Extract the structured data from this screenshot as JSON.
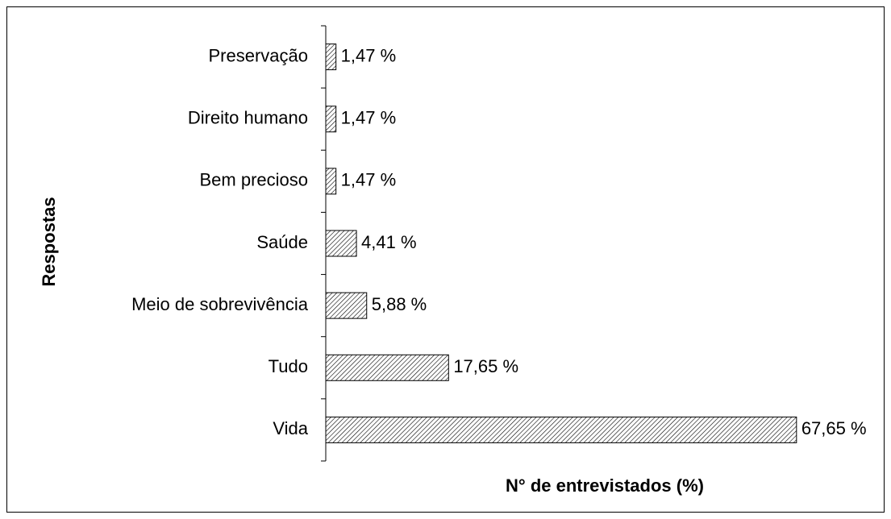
{
  "chart_data": {
    "type": "hbar",
    "xlabel": "N° de entrevistados (%)",
    "ylabel": "Respostas",
    "categories": [
      "Preservação",
      "Direito humano",
      "Bem precioso",
      "Saúde",
      "Meio de sobrevivência",
      "Tudo",
      "Vida"
    ],
    "values": [
      1.47,
      1.47,
      1.47,
      4.41,
      5.88,
      17.65,
      67.65
    ],
    "value_labels": [
      "1,47 %",
      "1,47 %",
      "1,47 %",
      "4,41 %",
      "5,88 %",
      "17,65 %",
      "67,65 %"
    ],
    "color": "#000000"
  }
}
